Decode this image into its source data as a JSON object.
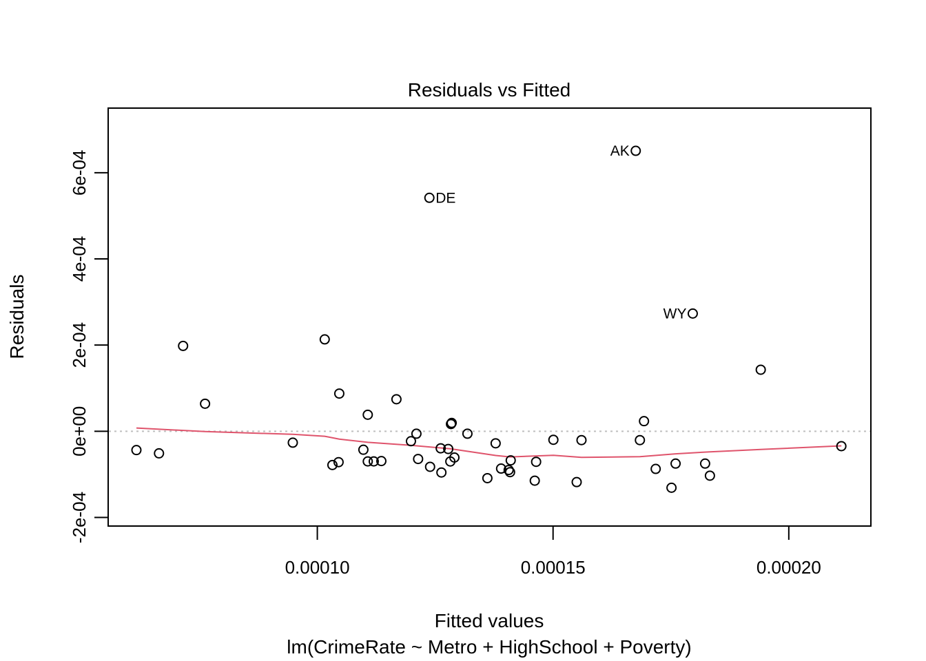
{
  "chart_data": {
    "type": "scatter",
    "title": "Residuals vs Fitted",
    "xlabel": "Fitted values",
    "xsublabel": "lm(CrimeRate ~ Metro + HighSchool + Poverty)",
    "ylabel": "Residuals",
    "xlim": [
      5.564e-05,
      0.00021741
    ],
    "ylim": [
      -0.00022,
      0.00075
    ],
    "x_ticks": [
      0.0001,
      0.00015,
      0.0002
    ],
    "x_tick_labels": [
      "0.00010",
      "0.00015",
      "0.00020"
    ],
    "y_ticks": [
      -0.0002,
      0.0,
      0.0002,
      0.0004,
      0.0006
    ],
    "y_tick_labels": [
      "-2e-04",
      "0e+00",
      "2e-04",
      "4e-04",
      "6e-04"
    ],
    "reference_line": {
      "y": 0,
      "style": "dotted",
      "color": "#bebebe"
    },
    "smooth_color": "#df536b",
    "points": [
      {
        "x": 6.163e-05,
        "y": -4.37e-05
      },
      {
        "x": 6.642e-05,
        "y": -5.13e-05
      },
      {
        "x": 7.153e-05,
        "y": 0.0001981
      },
      {
        "x": 7.619e-05,
        "y": 6.39e-05
      },
      {
        "x": 9.48e-05,
        "y": -2.65e-05
      },
      {
        "x": 0.00010157,
        "y": 0.0002132
      },
      {
        "x": 0.0001032,
        "y": -7.83e-05
      },
      {
        "x": 0.00010451,
        "y": -7.17e-05
      },
      {
        "x": 0.00010466,
        "y": 8.75e-05
      },
      {
        "x": 0.00010977,
        "y": -4.29e-05
      },
      {
        "x": 0.0001107,
        "y": 3.83e-05
      },
      {
        "x": 0.0001107,
        "y": -7e-05
      },
      {
        "x": 0.00011197,
        "y": -7e-05
      },
      {
        "x": 0.00011358,
        "y": -6.92e-05
      },
      {
        "x": 0.00011678,
        "y": 7.43e-05
      },
      {
        "x": 0.00011986,
        "y": -2.31e-05
      },
      {
        "x": 0.00012102,
        "y": -5.7e-06
      },
      {
        "x": 0.00012138,
        "y": -6.43e-05
      },
      {
        "x": 0.00012377,
        "y": 0.0005418,
        "label": "DE"
      },
      {
        "x": 0.00012392,
        "y": -8.25e-05
      },
      {
        "x": 0.00012617,
        "y": -3.96e-05
      },
      {
        "x": 0.00012632,
        "y": -9.57e-05
      },
      {
        "x": 0.00012777,
        "y": -4.12e-05
      },
      {
        "x": 0.00012835,
        "y": 1.68e-05
      },
      {
        "x": 0.0001285,
        "y": 1.93e-05
      },
      {
        "x": 0.00012821,
        "y": -7.01e-05
      },
      {
        "x": 0.00012908,
        "y": -6.1e-05
      },
      {
        "x": 0.00013184,
        "y": -5.7e-06
      },
      {
        "x": 0.00013607,
        "y": -0.0001089
      },
      {
        "x": 0.00013782,
        "y": -2.8e-05
      },
      {
        "x": 0.00013898,
        "y": -8.66e-05
      },
      {
        "x": 0.00014058,
        "y": -8.99e-05
      },
      {
        "x": 0.00014088,
        "y": -9.49e-05
      },
      {
        "x": 0.00014102,
        "y": -6.76e-05
      },
      {
        "x": 0.00014612,
        "y": -0.0001147
      },
      {
        "x": 0.00014641,
        "y": -7.09e-05
      },
      {
        "x": 0.00015007,
        "y": -1.98e-05
      },
      {
        "x": 0.00015501,
        "y": -0.000118
      },
      {
        "x": 0.00015603,
        "y": -2.06e-05
      },
      {
        "x": 0.00016754,
        "y": 0.0006509,
        "label": "AK"
      },
      {
        "x": 0.00016842,
        "y": -2.06e-05
      },
      {
        "x": 0.00016929,
        "y": 2.34e-05
      },
      {
        "x": 0.00017177,
        "y": -8.74e-05
      },
      {
        "x": 0.00017512,
        "y": -0.0001311
      },
      {
        "x": 0.00017599,
        "y": -7.5e-05
      },
      {
        "x": 0.00017963,
        "y": 0.0002732,
        "label": "WY"
      },
      {
        "x": 0.00018225,
        "y": -7.5e-05
      },
      {
        "x": 0.00018327,
        "y": -0.0001031
      },
      {
        "x": 0.00019405,
        "y": 0.0001428
      },
      {
        "x": 0.00021115,
        "y": -3.46e-05
      }
    ],
    "smooth_line": [
      [
        6.163e-05,
        7.5e-06
      ],
      [
        7.619e-05,
        -8e-07
      ],
      [
        9.48e-05,
        -7.2e-06
      ],
      [
        0.00010157,
        -1.16e-05
      ],
      [
        0.00010466,
        -1.81e-05
      ],
      [
        0.0001107,
        -2.57e-05
      ],
      [
        0.00011986,
        -3.26e-05
      ],
      [
        0.00012835,
        -4.09e-05
      ],
      [
        0.00013782,
        -5.62e-05
      ],
      [
        0.00014088,
        -5.96e-05
      ],
      [
        0.00015007,
        -5.59e-05
      ],
      [
        0.00015603,
        -6.06e-05
      ],
      [
        0.00016842,
        -5.91e-05
      ],
      [
        0.00017599,
        -5.24e-05
      ],
      [
        0.00018327,
        -4.78e-05
      ],
      [
        0.00019405,
        -4.23e-05
      ],
      [
        0.00021115,
        -3.38e-05
      ]
    ]
  }
}
